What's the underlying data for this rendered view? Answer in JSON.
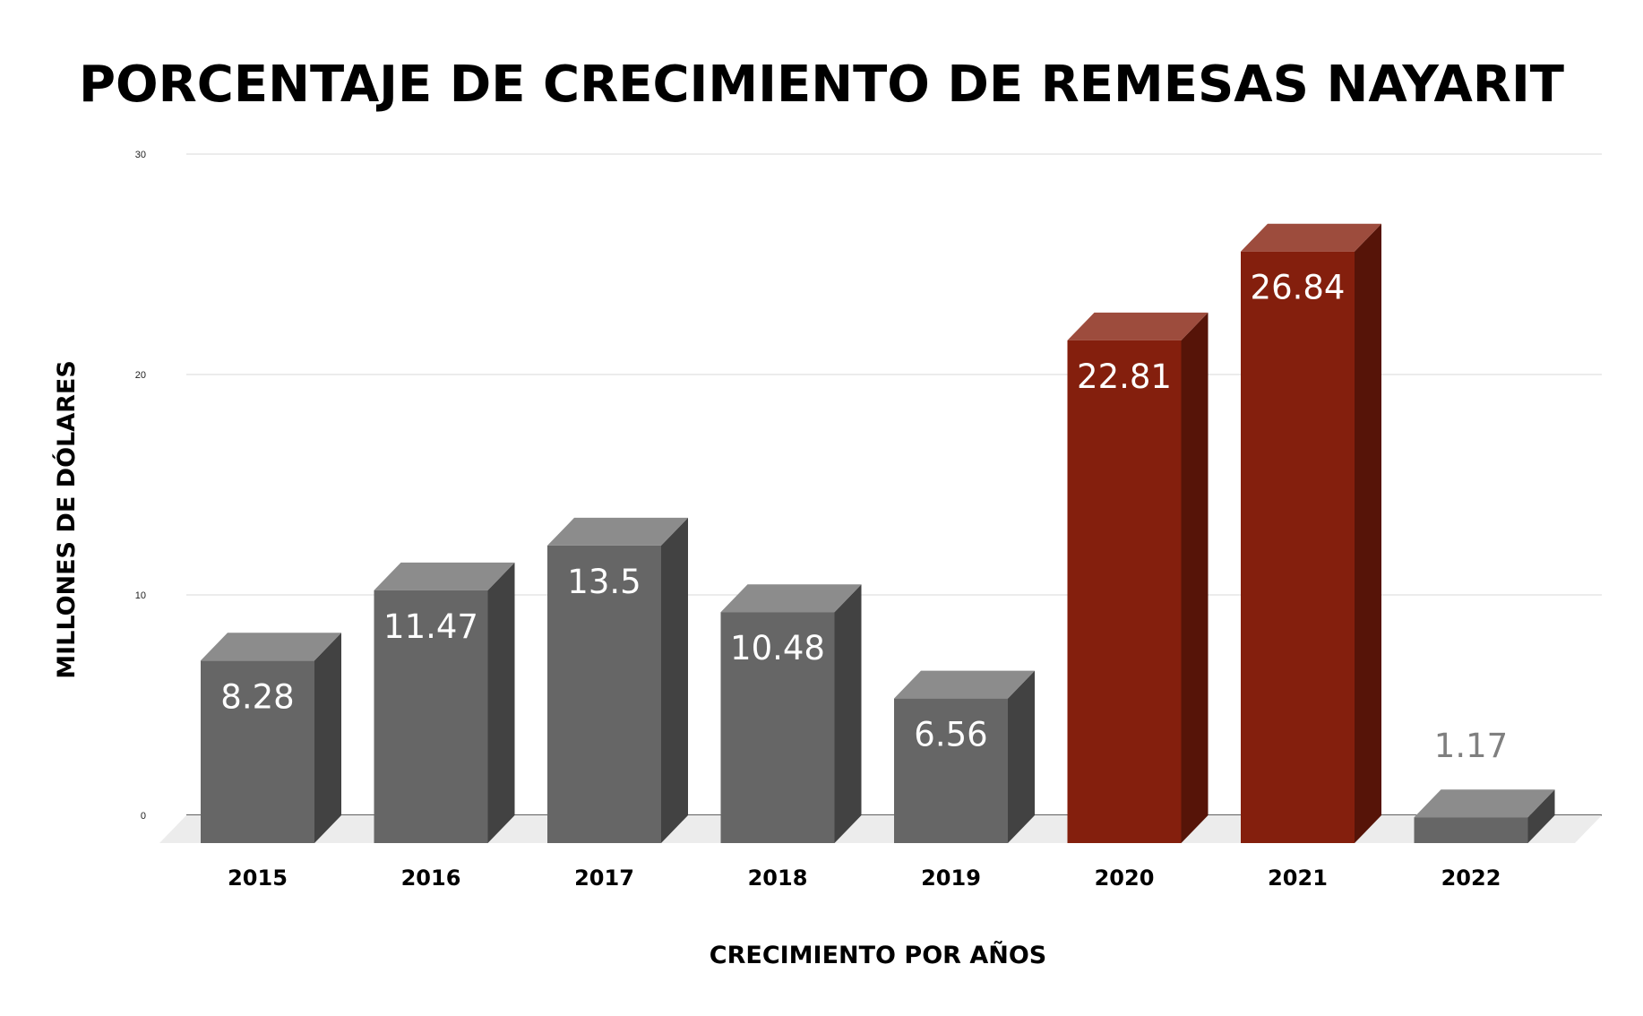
{
  "chart_data": {
    "type": "bar",
    "title": "PORCENTAJE DE CRECIMIENTO DE REMESAS NAYARIT",
    "xlabel": "CRECIMIENTO POR AÑOS",
    "ylabel": "MILLONES DE DÓLARES",
    "categories": [
      "2015",
      "2016",
      "2017",
      "2018",
      "2019",
      "2020",
      "2021",
      "2022"
    ],
    "values": [
      8.28,
      11.47,
      13.5,
      10.48,
      6.56,
      22.81,
      26.84,
      1.17
    ],
    "data_labels": [
      "8.28",
      "11.47",
      "13.5",
      "10.48",
      "6.56",
      "22.81",
      "26.84",
      "1.17"
    ],
    "ylim": [
      0,
      30
    ],
    "yticks": [
      0,
      10,
      20,
      30
    ],
    "ytick_labels": [
      "0",
      "10",
      "20",
      "30"
    ],
    "grid": true,
    "legend": "none",
    "style": "3d-column",
    "colors": {
      "default": "#666666",
      "highlight": "#841f0d",
      "data_label_inside": "#ffffff",
      "data_label_outside": "#7f7f7f"
    },
    "highlight_categories": [
      "2020",
      "2021"
    ]
  }
}
